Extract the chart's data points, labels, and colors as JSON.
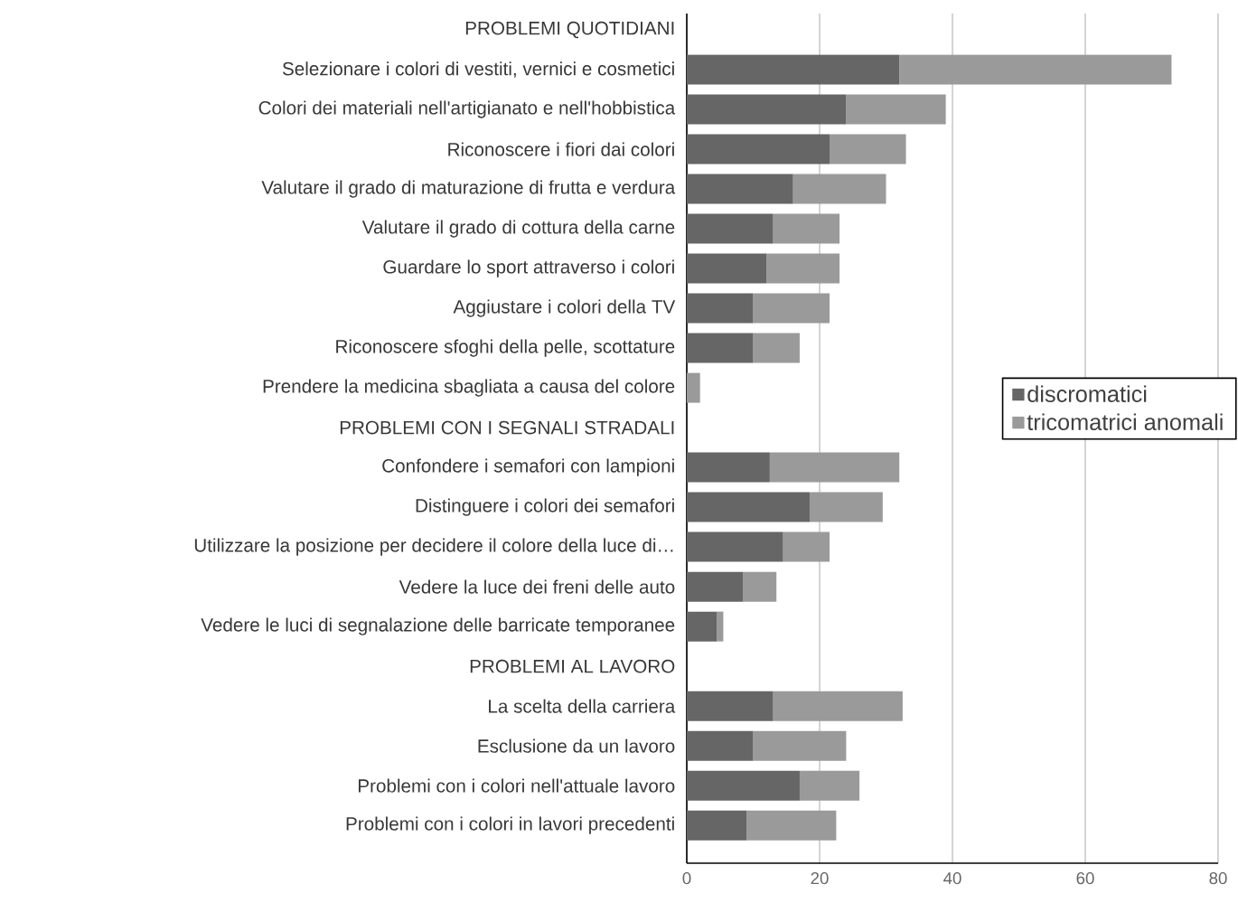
{
  "chart_data": {
    "type": "bar",
    "orientation": "horizontal",
    "stacked": true,
    "categories": [
      "PROBLEMI QUOTIDIANI",
      "Selezionare i colori di vestiti, vernici e cosmetici",
      "Colori dei materiali nell'artigianato e nell'hobbistica",
      "Riconoscere i fiori dai colori",
      "Valutare il grado di maturazione di frutta e verdura",
      "Valutare il grado di cottura della carne",
      "Guardare lo sport attraverso i colori",
      "Aggiustare i colori della TV",
      "Riconoscere sfoghi della pelle, scottature",
      "Prendere la medicina sbagliata a causa del colore",
      "PROBLEMI CON I SEGNALI STRADALI",
      "Confondere i semafori con lampioni",
      "Distinguere i colori dei semafori",
      "Utilizzare la posizione per decidere il colore della luce di…",
      "Vedere la luce dei freni delle auto",
      "Vedere le luci di segnalazione delle barricate temporanee",
      "PROBLEMI AL LAVORO",
      "La scelta della carriera",
      "Esclusione da un lavoro",
      "Problemi con i colori nell'attuale lavoro",
      "Problemi con i colori in lavori precedenti"
    ],
    "series": [
      {
        "name": "discromatici",
        "color": "#666666",
        "values": [
          null,
          32,
          24,
          21.5,
          16,
          13,
          12,
          10,
          10,
          0,
          null,
          12.5,
          18.5,
          14.5,
          8.5,
          4.5,
          null,
          13,
          10,
          17,
          9
        ]
      },
      {
        "name": "tricomatrici anomali",
        "color": "#9a9a9a",
        "values": [
          null,
          41,
          15,
          11.5,
          14,
          10,
          11,
          11.5,
          7,
          2,
          null,
          19.5,
          11,
          7,
          5,
          1,
          null,
          19.5,
          14,
          9,
          13.5
        ]
      }
    ],
    "xlim": [
      0,
      80
    ],
    "xticks": [
      0,
      20,
      40,
      60,
      80
    ],
    "grid": "x",
    "legend": "right"
  }
}
